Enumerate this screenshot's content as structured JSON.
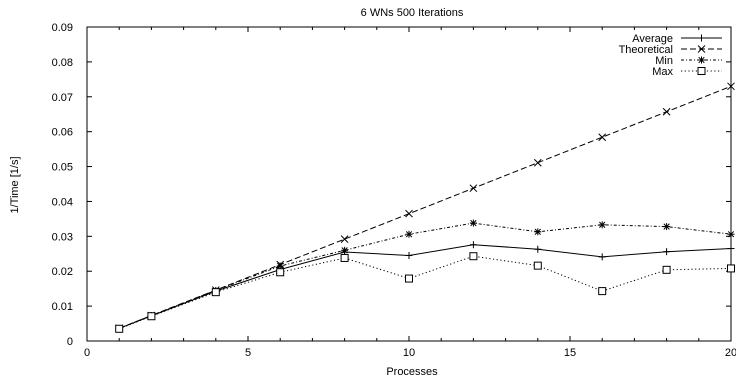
{
  "chart_data": {
    "type": "line",
    "title": "6 WNs 500 Iterations",
    "xlabel": "Processes",
    "ylabel": "1/Time [1/s]",
    "xlim": [
      0,
      20
    ],
    "ylim": [
      0,
      0.09
    ],
    "x_ticks": [
      "0",
      "5",
      "10",
      "15",
      "20"
    ],
    "y_ticks": [
      "0",
      "0.01",
      "0.02",
      "0.03",
      "0.04",
      "0.05",
      "0.06",
      "0.07",
      "0.08",
      "0.09"
    ],
    "grid": false,
    "legend_position": "top-right",
    "x": [
      1,
      2,
      4,
      6,
      8,
      10,
      12,
      14,
      16,
      18,
      20
    ],
    "series": [
      {
        "name": "Average",
        "marker": "plus",
        "dash": "solid",
        "values": [
          0.0036,
          0.0072,
          0.0143,
          0.0205,
          0.0255,
          0.0245,
          0.0276,
          0.0263,
          0.0241,
          0.0256,
          0.0265
        ]
      },
      {
        "name": "Theoretical",
        "marker": "cross",
        "dash": "dashed",
        "values": [
          0.00365,
          0.0073,
          0.0146,
          0.0219,
          0.0292,
          0.0365,
          0.0438,
          0.0511,
          0.0584,
          0.0657,
          0.073
        ]
      },
      {
        "name": "Min",
        "marker": "star",
        "dash": "dashdot",
        "values": [
          0.0036,
          0.0073,
          0.0145,
          0.0215,
          0.026,
          0.0306,
          0.0338,
          0.0313,
          0.0333,
          0.0328,
          0.0306
        ]
      },
      {
        "name": "Max",
        "marker": "square",
        "dash": "dotted",
        "values": [
          0.0035,
          0.0071,
          0.014,
          0.0197,
          0.0238,
          0.0179,
          0.0243,
          0.0216,
          0.0143,
          0.0204,
          0.0208
        ]
      }
    ]
  }
}
